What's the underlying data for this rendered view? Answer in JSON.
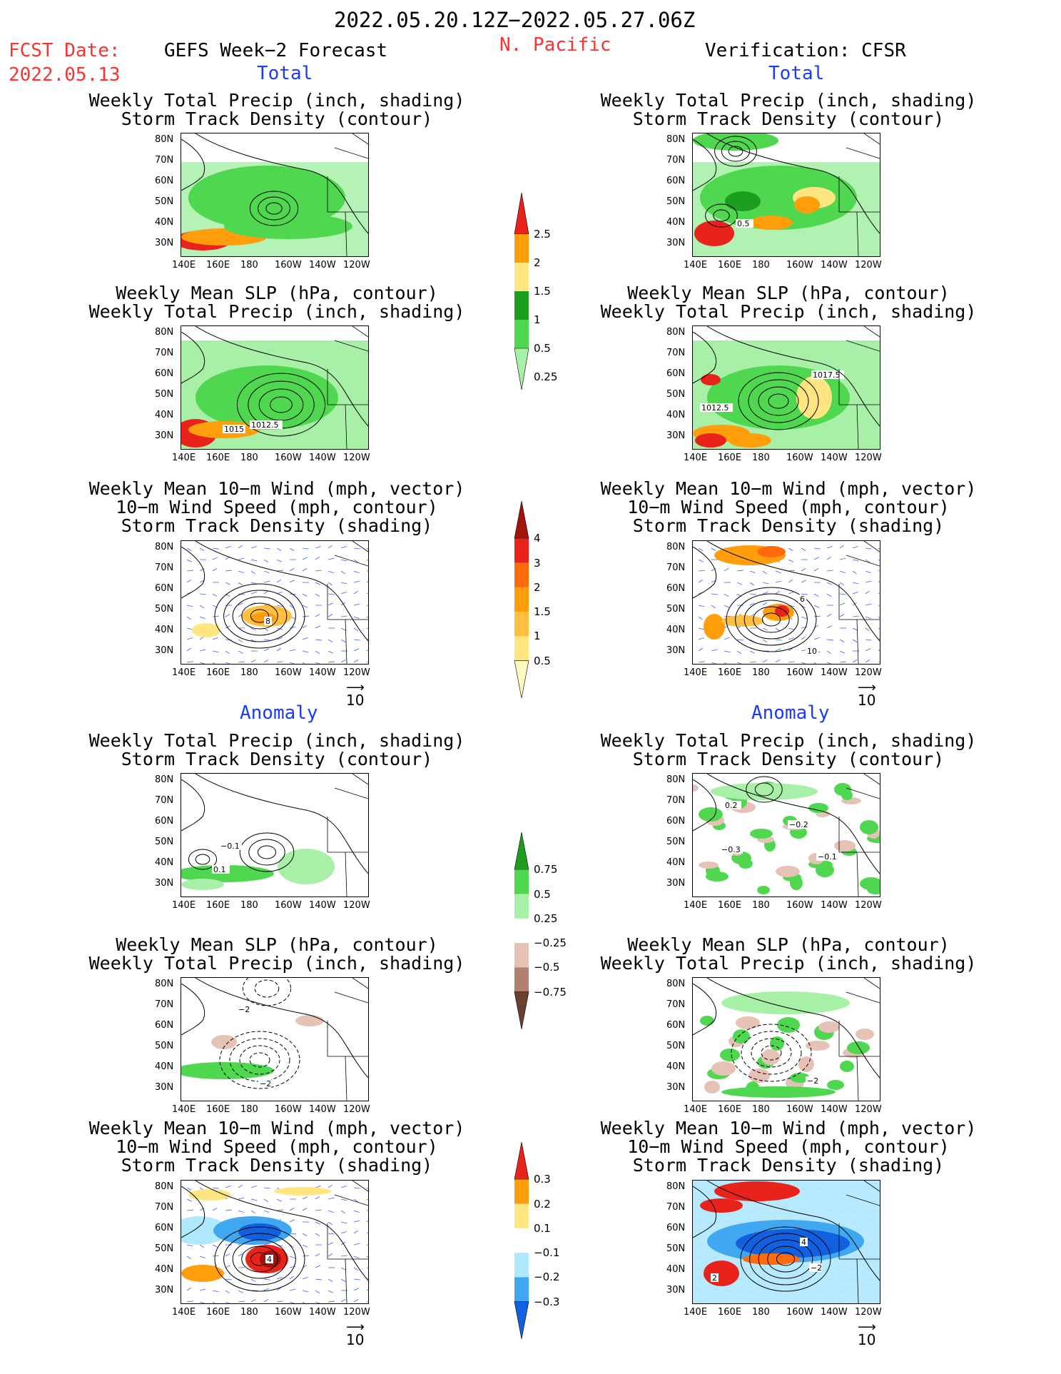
{
  "header": {
    "date_range": "2022.05.20.12Z−2022.05.27.06Z",
    "fcst_label": "FCST Date:",
    "fcst_date": "2022.05.13",
    "forecast_title": "GEFS Week−2 Forecast",
    "region": "N. Pacific",
    "verification_title": "Verification: CFSR"
  },
  "sections": {
    "total_left": "Total",
    "total_right": "Total",
    "anomaly_left": "Anomaly",
    "anomaly_right": "Anomaly"
  },
  "panel_titles": {
    "precip_storm_l1": "Weekly Total Precip (inch, shading)",
    "precip_storm_l2": "Storm Track Density (contour)",
    "slp_l1": "Weekly Mean SLP (hPa, contour)",
    "slp_l2": "Weekly Total Precip (inch, shading)",
    "wind_l1": "Weekly Mean 10−m Wind (mph, vector)",
    "wind_l2": "10−m Wind Speed (mph, contour)",
    "wind_l3": "Storm Track Density (shading)"
  },
  "axes": {
    "lat_labels": [
      "80N",
      "70N",
      "60N",
      "50N",
      "40N",
      "30N"
    ],
    "lon_labels": [
      "140E",
      "160E",
      "180",
      "160W",
      "140W",
      "120W"
    ]
  },
  "vector_ref": "10",
  "colorbars": {
    "precip_total": {
      "ticks": [
        "2.5",
        "2",
        "1.5",
        "1",
        "0.5",
        "0.25"
      ],
      "colors": [
        "#e8231c",
        "#ff9d0a",
        "#ffe680",
        "#1e9e1e",
        "#4fd84f",
        "#a8f0a8"
      ]
    },
    "storm_total": {
      "ticks": [
        "4",
        "3",
        "2",
        "1.5",
        "1",
        "0.5"
      ],
      "colors": [
        "#a0140c",
        "#e8231c",
        "#ff6a0a",
        "#ff9d0a",
        "#ffc040",
        "#ffe680",
        "#fff8c0"
      ]
    },
    "precip_anom": {
      "ticks": [
        "0.75",
        "0.5",
        "0.25",
        "−0.25",
        "−0.5",
        "−0.75"
      ],
      "colors": [
        "#1e9e1e",
        "#4fd84f",
        "#a8f0a8",
        "#ffffff",
        "#e6c2b6",
        "#b08070",
        "#6a4030"
      ]
    },
    "storm_anom": {
      "ticks": [
        "0.3",
        "0.2",
        "0.1",
        "−0.1",
        "−0.2",
        "−0.3"
      ],
      "colors": [
        "#e8231c",
        "#ff9d0a",
        "#ffe680",
        "#ffffff",
        "#b0e8ff",
        "#40a8f0",
        "#1060e0"
      ]
    }
  },
  "contour_labels": {
    "r1_right": "0.5",
    "r2_left_a": "1015",
    "r2_left_b": "1012.5",
    "r2_right_a": "1017.5",
    "r2_right_b": "1012.5",
    "r3_left_a": "8",
    "r3_right_a": "6",
    "r3_right_b": "10",
    "r4_left_a": "−0.1",
    "r4_left_b": "0.1",
    "r4_right_a": "0.2",
    "r4_right_b": "−0.2",
    "r4_right_c": "−0.3",
    "r4_right_d": "−0.1",
    "r5_left_a": "−2",
    "r5_left_b": "−2",
    "r5_right_a": "−2",
    "r6_left_a": "4",
    "r6_right_a": "4",
    "r6_right_b": "2",
    "r6_right_c": "−2"
  }
}
